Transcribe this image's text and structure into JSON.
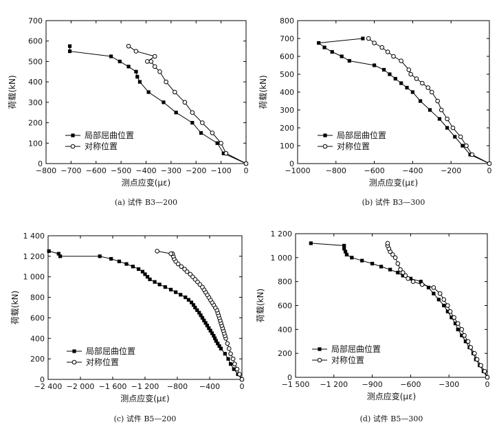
{
  "chart_data": [
    {
      "type": "line",
      "caption": "(a) 试件 B3—200",
      "xlabel": "测点应变(με)",
      "ylabel": "荷载(kN)",
      "xlim": [
        -800,
        0
      ],
      "ylim": [
        0,
        700
      ],
      "xticks": [
        -800,
        -700,
        -600,
        -500,
        -400,
        -300,
        -200,
        -100,
        0
      ],
      "yticks": [
        0,
        100,
        200,
        300,
        400,
        500,
        600,
        700
      ],
      "xtick_labels": [
        "−800",
        "−700",
        "−600",
        "−500",
        "−400",
        "−300",
        "−200",
        "−100",
        "0"
      ],
      "ytick_labels": [
        "0",
        "100",
        "200",
        "300",
        "400",
        "500",
        "600",
        "700"
      ],
      "legend": [
        "局部屈曲位置",
        "对称位置"
      ],
      "series": [
        {
          "name": "局部屈曲位置",
          "marker": "square",
          "points": [
            [
              0,
              0
            ],
            [
              -90,
              50
            ],
            [
              -115,
              100
            ],
            [
              -180,
              150
            ],
            [
              -215,
              200
            ],
            [
              -280,
              250
            ],
            [
              -330,
              300
            ],
            [
              -390,
              350
            ],
            [
              -425,
              400
            ],
            [
              -435,
              425
            ],
            [
              -440,
              450
            ],
            [
              -470,
              475
            ],
            [
              -505,
              500
            ],
            [
              -540,
              525
            ],
            [
              -705,
              550
            ],
            [
              -705,
              575
            ]
          ]
        },
        {
          "name": "对称位置",
          "marker": "circle",
          "points": [
            [
              0,
              0
            ],
            [
              -80,
              50
            ],
            [
              -100,
              100
            ],
            [
              -135,
              150
            ],
            [
              -175,
              200
            ],
            [
              -215,
              250
            ],
            [
              -245,
              300
            ],
            [
              -285,
              350
            ],
            [
              -320,
              400
            ],
            [
              -345,
              450
            ],
            [
              -365,
              475
            ],
            [
              -380,
              500
            ],
            [
              -395,
              500
            ],
            [
              -365,
              525
            ],
            [
              -440,
              550
            ],
            [
              -470,
              575
            ]
          ]
        }
      ]
    },
    {
      "type": "line",
      "caption": "(b) 试件 B3—300",
      "xlabel": "测点应变(με)",
      "ylabel": "荷载(kN)",
      "xlim": [
        -1000,
        0
      ],
      "ylim": [
        0,
        800
      ],
      "xticks": [
        -1000,
        -800,
        -600,
        -400,
        -200,
        0
      ],
      "yticks": [
        0,
        100,
        200,
        300,
        400,
        500,
        600,
        700,
        800
      ],
      "xtick_labels": [
        "−1000",
        "−800",
        "−600",
        "−400",
        "−200",
        "0"
      ],
      "ytick_labels": [
        "0",
        "100",
        "200",
        "300",
        "400",
        "500",
        "600",
        "700",
        "800"
      ],
      "legend": [
        "局部屈曲位置",
        "对称位置"
      ],
      "series": [
        {
          "name": "局部屈曲位置",
          "marker": "square",
          "points": [
            [
              0,
              0
            ],
            [
              -100,
              50
            ],
            [
              -140,
              100
            ],
            [
              -180,
              150
            ],
            [
              -220,
              200
            ],
            [
              -260,
              250
            ],
            [
              -310,
              300
            ],
            [
              -360,
              350
            ],
            [
              -400,
              400
            ],
            [
              -430,
              425
            ],
            [
              -460,
              450
            ],
            [
              -490,
              475
            ],
            [
              -520,
              500
            ],
            [
              -550,
              525
            ],
            [
              -600,
              550
            ],
            [
              -730,
              575
            ],
            [
              -770,
              600
            ],
            [
              -820,
              625
            ],
            [
              -860,
              650
            ],
            [
              -890,
              675
            ],
            [
              -660,
              700
            ]
          ]
        },
        {
          "name": "对称位置",
          "marker": "circle",
          "points": [
            [
              0,
              0
            ],
            [
              -90,
              50
            ],
            [
              -120,
              100
            ],
            [
              -150,
              150
            ],
            [
              -190,
              200
            ],
            [
              -220,
              250
            ],
            [
              -250,
              300
            ],
            [
              -270,
              350
            ],
            [
              -300,
              400
            ],
            [
              -320,
              425
            ],
            [
              -350,
              450
            ],
            [
              -380,
              475
            ],
            [
              -410,
              500
            ],
            [
              -420,
              525
            ],
            [
              -460,
              575
            ],
            [
              -500,
              600
            ],
            [
              -530,
              625
            ],
            [
              -560,
              650
            ],
            [
              -600,
              675
            ],
            [
              -630,
              700
            ]
          ]
        }
      ]
    },
    {
      "type": "line",
      "caption": "(c) 试件 B5—200",
      "xlabel": "测点应变(με)",
      "ylabel": "荷载(kN)",
      "xlim": [
        -2400,
        0
      ],
      "ylim": [
        0,
        1400
      ],
      "xticks": [
        -2400,
        -2000,
        -1600,
        -1200,
        -800,
        -400,
        0
      ],
      "yticks": [
        0,
        200,
        400,
        600,
        800,
        1000,
        1200,
        1400
      ],
      "xtick_labels": [
        "−2 400",
        "−2 000",
        "−1 600",
        "−1 200",
        "−800",
        "−400",
        "0"
      ],
      "ytick_labels": [
        "0",
        "200",
        "400",
        "600",
        "800",
        "1 000",
        "1 200",
        "1 400"
      ],
      "legend": [
        "局部屈曲位置",
        "对称位置"
      ],
      "series": [
        {
          "name": "局部屈曲位置",
          "marker": "square",
          "points": [
            [
              0,
              0
            ],
            [
              -50,
              50
            ],
            [
              -100,
              100
            ],
            [
              -140,
              150
            ],
            [
              -170,
              200
            ],
            [
              -210,
              250
            ],
            [
              -260,
              300
            ],
            [
              -280,
              325
            ],
            [
              -300,
              350
            ],
            [
              -320,
              375
            ],
            [
              -335,
              400
            ],
            [
              -350,
              425
            ],
            [
              -370,
              450
            ],
            [
              -390,
              475
            ],
            [
              -410,
              500
            ],
            [
              -430,
              525
            ],
            [
              -450,
              550
            ],
            [
              -470,
              575
            ],
            [
              -490,
              600
            ],
            [
              -510,
              625
            ],
            [
              -530,
              650
            ],
            [
              -555,
              675
            ],
            [
              -580,
              700
            ],
            [
              -600,
              725
            ],
            [
              -625,
              750
            ],
            [
              -660,
              775
            ],
            [
              -700,
              800
            ],
            [
              -760,
              825
            ],
            [
              -820,
              850
            ],
            [
              -880,
              875
            ],
            [
              -950,
              900
            ],
            [
              -1020,
              925
            ],
            [
              -1080,
              950
            ],
            [
              -1140,
              975
            ],
            [
              -1170,
              1000
            ],
            [
              -1200,
              1025
            ],
            [
              -1230,
              1050
            ],
            [
              -1280,
              1075
            ],
            [
              -1350,
              1100
            ],
            [
              -1430,
              1125
            ],
            [
              -1520,
              1150
            ],
            [
              -1620,
              1175
            ],
            [
              -1760,
              1200
            ],
            [
              -2250,
              1200
            ],
            [
              -2270,
              1225
            ],
            [
              -2390,
              1250
            ]
          ]
        },
        {
          "name": "对称位置",
          "marker": "circle",
          "points": [
            [
              0,
              0
            ],
            [
              -30,
              50
            ],
            [
              -60,
              100
            ],
            [
              -90,
              150
            ],
            [
              -110,
              200
            ],
            [
              -140,
              250
            ],
            [
              -160,
              300
            ],
            [
              -180,
              350
            ],
            [
              -200,
              400
            ],
            [
              -210,
              425
            ],
            [
              -220,
              450
            ],
            [
              -230,
              475
            ],
            [
              -240,
              500
            ],
            [
              -250,
              525
            ],
            [
              -260,
              550
            ],
            [
              -270,
              575
            ],
            [
              -280,
              600
            ],
            [
              -290,
              625
            ],
            [
              -300,
              650
            ],
            [
              -310,
              675
            ],
            [
              -330,
              700
            ],
            [
              -350,
              725
            ],
            [
              -370,
              750
            ],
            [
              -390,
              775
            ],
            [
              -410,
              800
            ],
            [
              -430,
              825
            ],
            [
              -450,
              850
            ],
            [
              -470,
              875
            ],
            [
              -490,
              900
            ],
            [
              -520,
              925
            ],
            [
              -550,
              950
            ],
            [
              -580,
              975
            ],
            [
              -610,
              1000
            ],
            [
              -640,
              1025
            ],
            [
              -680,
              1050
            ],
            [
              -710,
              1075
            ],
            [
              -750,
              1100
            ],
            [
              -790,
              1125
            ],
            [
              -820,
              1150
            ],
            [
              -840,
              1175
            ],
            [
              -850,
              1200
            ],
            [
              -860,
              1225
            ],
            [
              -880,
              1225
            ],
            [
              -1050,
              1250
            ]
          ]
        }
      ]
    },
    {
      "type": "line",
      "caption": "(d) 试件 B5—300",
      "xlabel": "测点应变(με)",
      "ylabel": "荷载(kN)",
      "xlim": [
        -1500,
        0
      ],
      "ylim": [
        0,
        1200
      ],
      "xticks": [
        -1500,
        -1200,
        -900,
        -600,
        -300,
        0
      ],
      "yticks": [
        0,
        200,
        400,
        600,
        800,
        1000,
        1200
      ],
      "xtick_labels": [
        "−1 500",
        "−1 200",
        "−900",
        "−600",
        "−300",
        "0"
      ],
      "ytick_labels": [
        "0",
        "200",
        "400",
        "600",
        "800",
        "1 000",
        "1 200"
      ],
      "legend": [
        "局部屈曲位置",
        "对称位置"
      ],
      "series": [
        {
          "name": "局部屈曲位置",
          "marker": "square",
          "points": [
            [
              0,
              0
            ],
            [
              -30,
              50
            ],
            [
              -60,
              100
            ],
            [
              -90,
              150
            ],
            [
              -110,
              200
            ],
            [
              -140,
              250
            ],
            [
              -170,
              300
            ],
            [
              -200,
              350
            ],
            [
              -230,
              400
            ],
            [
              -250,
              450
            ],
            [
              -280,
              500
            ],
            [
              -310,
              550
            ],
            [
              -340,
              600
            ],
            [
              -380,
              650
            ],
            [
              -420,
              700
            ],
            [
              -460,
              750
            ],
            [
              -520,
              800
            ],
            [
              -600,
              825
            ],
            [
              -660,
              850
            ],
            [
              -700,
              875
            ],
            [
              -760,
              900
            ],
            [
              -830,
              925
            ],
            [
              -900,
              950
            ],
            [
              -980,
              975
            ],
            [
              -1060,
              1000
            ],
            [
              -1100,
              1025
            ],
            [
              -1110,
              1050
            ],
            [
              -1120,
              1075
            ],
            [
              -1120,
              1100
            ],
            [
              -1380,
              1120
            ]
          ]
        },
        {
          "name": "对称位置",
          "marker": "circle",
          "points": [
            [
              0,
              0
            ],
            [
              -20,
              50
            ],
            [
              -50,
              100
            ],
            [
              -80,
              150
            ],
            [
              -100,
              200
            ],
            [
              -130,
              250
            ],
            [
              -150,
              300
            ],
            [
              -180,
              350
            ],
            [
              -200,
              400
            ],
            [
              -230,
              450
            ],
            [
              -260,
              500
            ],
            [
              -290,
              550
            ],
            [
              -310,
              600
            ],
            [
              -340,
              650
            ],
            [
              -370,
              700
            ],
            [
              -420,
              750
            ],
            [
              -510,
              775
            ],
            [
              -580,
              800
            ],
            [
              -620,
              825
            ],
            [
              -640,
              850
            ],
            [
              -660,
              875
            ],
            [
              -680,
              900
            ],
            [
              -700,
              950
            ],
            [
              -720,
              1000
            ],
            [
              -740,
              1025
            ],
            [
              -760,
              1050
            ],
            [
              -770,
              1075
            ],
            [
              -780,
              1100
            ],
            [
              -780,
              1120
            ]
          ]
        }
      ]
    }
  ]
}
